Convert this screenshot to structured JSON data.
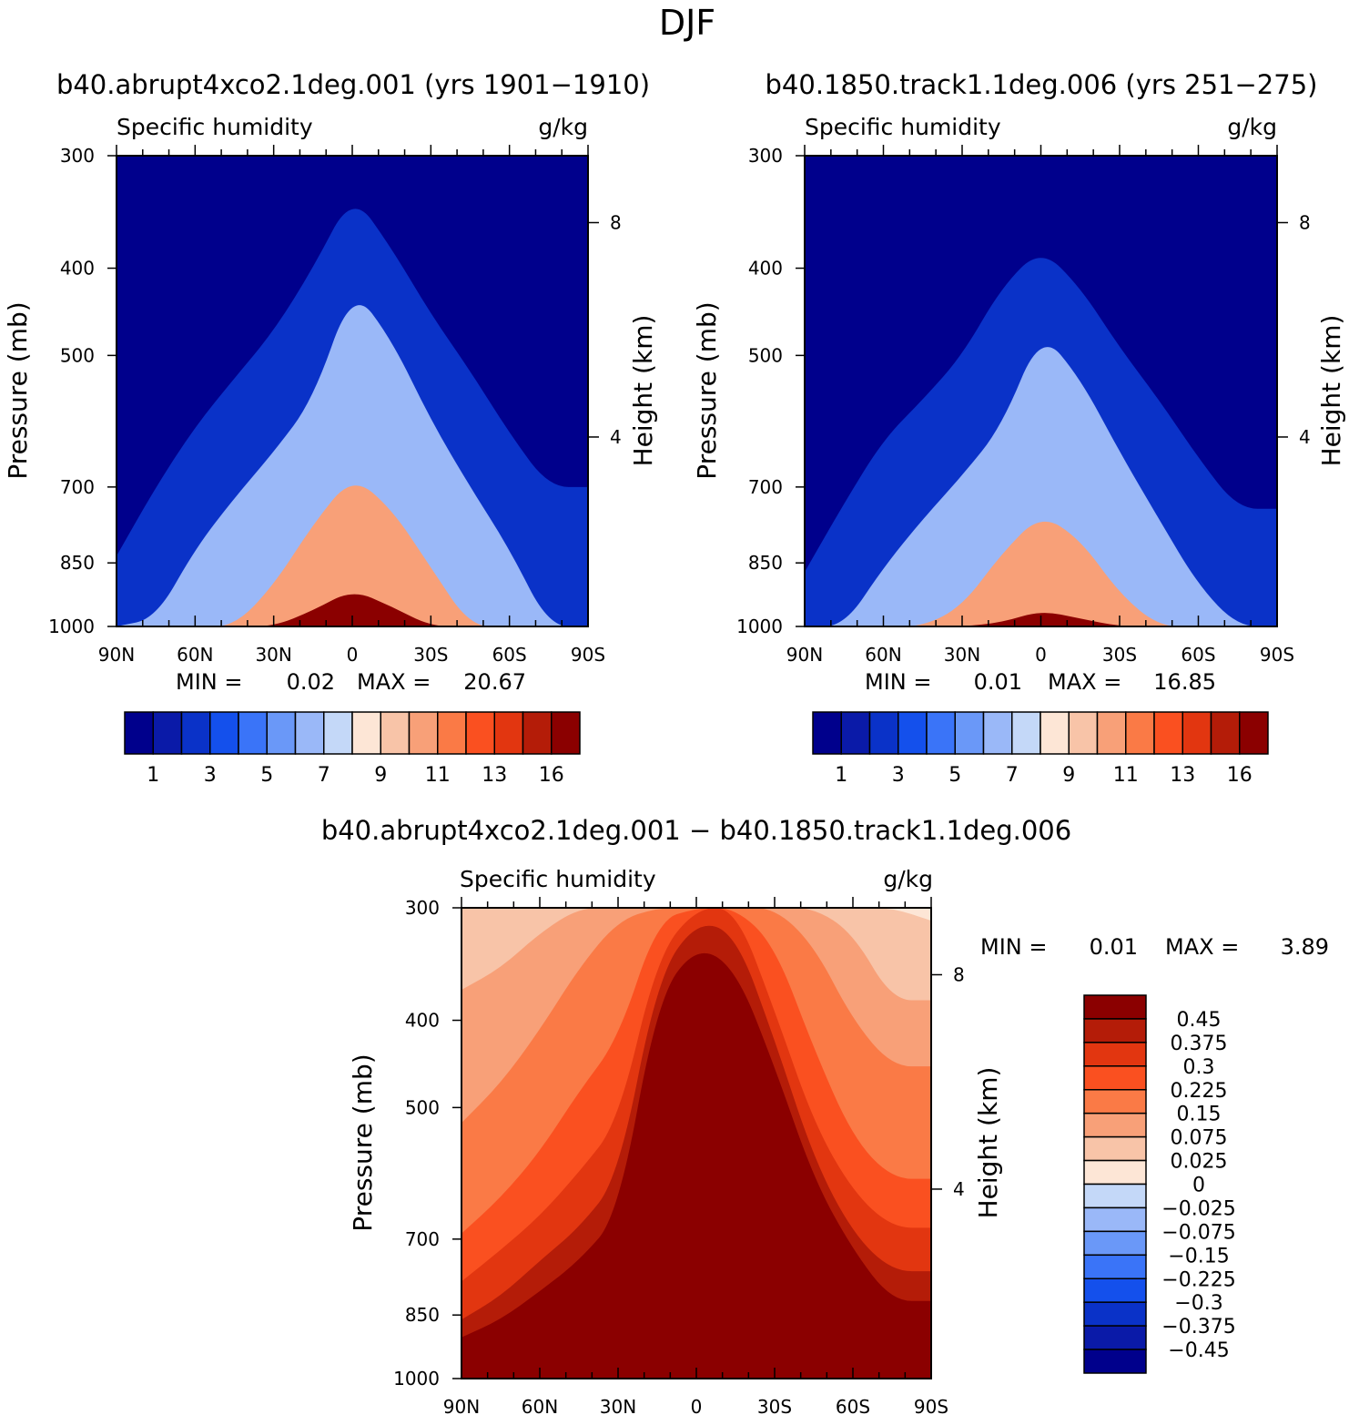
{
  "page_title": "DJF",
  "colors": {
    "seq": [
      "#00008c",
      "#0a1aa8",
      "#0a32c8",
      "#1450ec",
      "#3a74f8",
      "#6a98f8",
      "#9ab8f8",
      "#c4d8f8",
      "#d6e6fa",
      "#fde6d6",
      "#f8c4a8",
      "#f8a078",
      "#fa7a46",
      "#fa5020",
      "#e23610",
      "#b41c08",
      "#8b0000"
    ],
    "diff": [
      "#8b0000",
      "#b41c08",
      "#e23610",
      "#fa5020",
      "#fa7a46",
      "#f8a078",
      "#f8c4a8",
      "#fde6d6",
      "#d6e6fa",
      "#c4d8f8",
      "#9ab8f8",
      "#6a98f8",
      "#3a74f8",
      "#1450ec",
      "#0a32c8",
      "#0a1aa8",
      "#00008c"
    ]
  },
  "panels": [
    {
      "title": "b40.abrupt4xco2.1deg.001 (yrs 1901−1910)",
      "var_label": "Specific humidity",
      "units": "g/kg",
      "min_label": "MIN =",
      "min_value": "0.02",
      "max_label": "MAX =",
      "max_value": "20.67",
      "colorbar_labels": [
        "1",
        "3",
        "5",
        "7",
        "9",
        "11",
        "13",
        "16"
      ]
    },
    {
      "title": "b40.1850.track1.1deg.006 (yrs 251−275)",
      "var_label": "Specific humidity",
      "units": "g/kg",
      "min_label": "MIN =",
      "min_value": "0.01",
      "max_label": "MAX =",
      "max_value": "16.85",
      "colorbar_labels": [
        "1",
        "3",
        "5",
        "7",
        "9",
        "11",
        "13",
        "16"
      ]
    },
    {
      "title": "b40.abrupt4xco2.1deg.001 − b40.1850.track1.1deg.006",
      "var_label": "Specific humidity",
      "units": "g/kg",
      "min_label": "MIN =",
      "min_value": "0.01",
      "max_label": "MAX =",
      "max_value": "3.89",
      "colorbar_labels": [
        "0.45",
        "0.375",
        "0.3",
        "0.225",
        "0.15",
        "0.075",
        "0.025",
        "0",
        "−0.025",
        "−0.075",
        "−0.15",
        "−0.225",
        "−0.3",
        "−0.375",
        "−0.45"
      ]
    }
  ],
  "chart_data": [
    {
      "type": "heatmap",
      "title": "b40.abrupt4xco2.1deg.001 (yrs 1901−1910)",
      "subtitle": "Specific humidity (g/kg)",
      "xlabel": "",
      "ylabel": "Pressure (mb)",
      "y2label": "Height (km)",
      "x_ticks": [
        "90N",
        "60N",
        "30N",
        "0",
        "30S",
        "60S",
        "90S"
      ],
      "y_ticks": [
        "300",
        "400",
        "500",
        "700",
        "850",
        "1000"
      ],
      "y2_ticks": [
        "8",
        "4"
      ],
      "contour_levels": [
        1,
        2,
        3,
        4,
        5,
        6,
        7,
        8,
        9,
        10,
        11,
        12,
        13,
        14,
        15,
        16
      ],
      "x": [
        90,
        75,
        60,
        45,
        30,
        15,
        0,
        -15,
        -30,
        -45,
        -60,
        -75,
        -90
      ],
      "contours": [
        {
          "level": 1,
          "tops": [
            835,
            700,
            600,
            530,
            470,
            400,
            330,
            380,
            450,
            520,
            610,
            700,
            700
          ]
        },
        {
          "level": 4,
          "tops": [
            1000,
            980,
            820,
            720,
            640,
            560,
            420,
            480,
            590,
            700,
            820,
            1000,
            1000
          ]
        },
        {
          "level": 9,
          "tops": [
            1000,
            1000,
            1000,
            1000,
            900,
            770,
            680,
            740,
            860,
            1000,
            1000,
            1000,
            1000
          ]
        },
        {
          "level": 16,
          "tops": [
            1000,
            1000,
            1000,
            1000,
            1000,
            960,
            910,
            950,
            1000,
            1000,
            1000,
            1000,
            1000
          ]
        }
      ],
      "min": 0.02,
      "max": 20.67
    },
    {
      "type": "heatmap",
      "title": "b40.1850.track1.1deg.006 (yrs 251−275)",
      "subtitle": "Specific humidity (g/kg)",
      "xlabel": "",
      "ylabel": "Pressure (mb)",
      "y2label": "Height (km)",
      "x_ticks": [
        "90N",
        "60N",
        "30N",
        "0",
        "30S",
        "60S",
        "90S"
      ],
      "y_ticks": [
        "300",
        "400",
        "500",
        "700",
        "850",
        "1000"
      ],
      "y2_ticks": [
        "8",
        "4"
      ],
      "contour_levels": [
        1,
        2,
        3,
        4,
        5,
        6,
        7,
        8,
        9,
        10,
        11,
        12,
        13,
        14,
        15,
        16
      ],
      "x": [
        90,
        75,
        60,
        45,
        30,
        15,
        0,
        -15,
        -30,
        -45,
        -60,
        -75,
        -90
      ],
      "contours": [
        {
          "level": 1,
          "tops": [
            870,
            730,
            620,
            560,
            500,
            420,
            380,
            420,
            490,
            560,
            650,
            740,
            740
          ]
        },
        {
          "level": 4,
          "tops": [
            1000,
            1000,
            860,
            760,
            680,
            600,
            470,
            530,
            640,
            760,
            900,
            1000,
            1000
          ]
        },
        {
          "level": 9,
          "tops": [
            1000,
            1000,
            1000,
            1000,
            950,
            830,
            750,
            800,
            920,
            1000,
            1000,
            1000,
            1000
          ]
        },
        {
          "level": 16,
          "tops": [
            1000,
            1000,
            1000,
            1000,
            1000,
            990,
            960,
            980,
            1000,
            1000,
            1000,
            1000,
            1000
          ]
        }
      ],
      "min": 0.01,
      "max": 16.85
    },
    {
      "type": "heatmap",
      "title": "b40.abrupt4xco2.1deg.001 − b40.1850.track1.1deg.006",
      "subtitle": "Specific humidity (g/kg)",
      "xlabel": "",
      "ylabel": "Pressure (mb)",
      "y2label": "Height (km)",
      "x_ticks": [
        "90N",
        "60N",
        "30N",
        "0",
        "30S",
        "60S",
        "90S"
      ],
      "y_ticks": [
        "300",
        "400",
        "500",
        "700",
        "850",
        "1000"
      ],
      "y2_ticks": [
        "8",
        "4"
      ],
      "contour_levels": [
        -0.45,
        -0.375,
        -0.3,
        -0.225,
        -0.15,
        -0.075,
        -0.025,
        0,
        0.025,
        0.075,
        0.15,
        0.225,
        0.3,
        0.375,
        0.45
      ],
      "x": [
        90,
        75,
        60,
        45,
        30,
        15,
        0,
        -15,
        -30,
        -45,
        -60,
        -75,
        -90
      ],
      "contours": [
        {
          "level": 0.025,
          "tops": [
            300,
            300,
            300,
            300,
            300,
            300,
            300,
            300,
            300,
            300,
            300,
            300,
            310
          ]
        },
        {
          "level": 0.075,
          "tops": [
            370,
            350,
            320,
            300,
            300,
            300,
            300,
            300,
            300,
            300,
            320,
            380,
            380
          ]
        },
        {
          "level": 0.15,
          "tops": [
            520,
            470,
            410,
            350,
            310,
            300,
            300,
            300,
            300,
            330,
            400,
            450,
            450
          ]
        },
        {
          "level": 0.225,
          "tops": [
            690,
            630,
            560,
            480,
            420,
            310,
            300,
            300,
            330,
            430,
            540,
            600,
            600
          ]
        },
        {
          "level": 0.3,
          "tops": [
            780,
            720,
            660,
            590,
            520,
            340,
            300,
            300,
            390,
            520,
            620,
            680,
            680
          ]
        },
        {
          "level": 0.375,
          "tops": [
            860,
            810,
            740,
            680,
            600,
            360,
            310,
            320,
            420,
            570,
            690,
            760,
            760
          ]
        },
        {
          "level": 0.45,
          "tops": [
            900,
            860,
            800,
            740,
            660,
            380,
            330,
            350,
            450,
            600,
            720,
            820,
            820
          ]
        }
      ],
      "min": 0.01,
      "max": 3.89
    }
  ]
}
